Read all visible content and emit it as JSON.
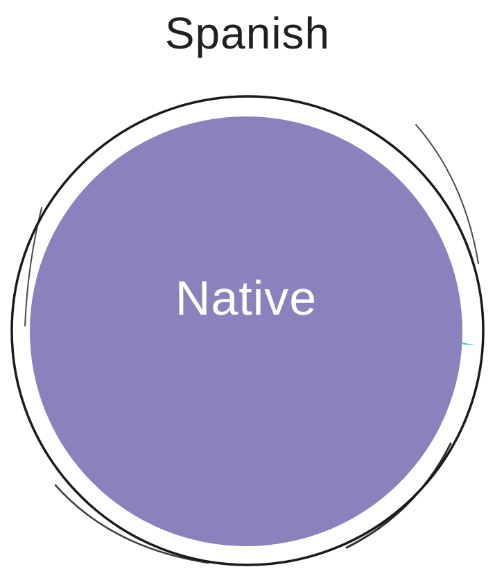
{
  "language": "Spanish",
  "proficiency": "Native",
  "colors": {
    "fill": "#8a82bc",
    "ring": "#1a1a1a",
    "accent": "#3cc5d6",
    "title": "#231f20"
  },
  "proficiency_level": 1.0
}
